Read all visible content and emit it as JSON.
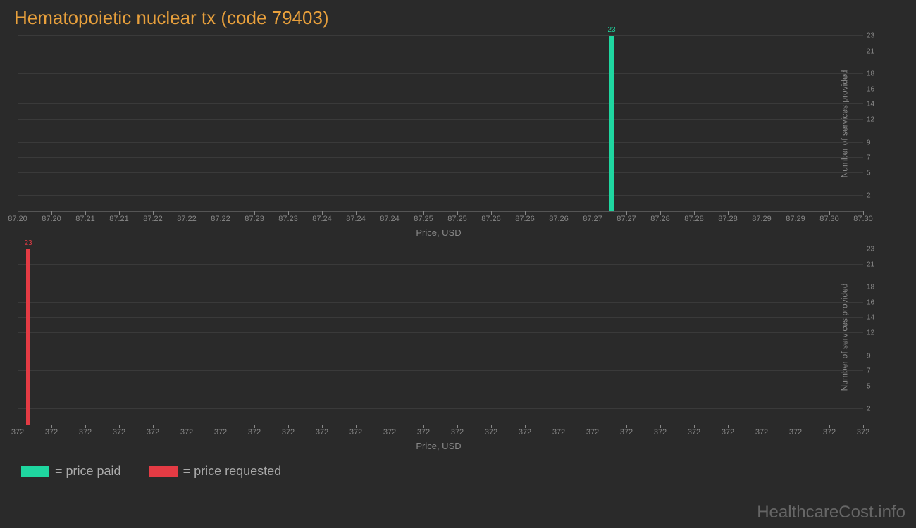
{
  "title": "Hematopoietic nuclear tx (code 79403)",
  "background_color": "#2a2a2a",
  "grid_color": "#3a3a3a",
  "axis_color": "#555555",
  "text_muted": "#888888",
  "title_color": "#e8a03c",
  "chart1": {
    "type": "bar",
    "bar_value": 23,
    "bar_label": "23",
    "bar_color": "#1fd6a0",
    "bar_position_pct": 70,
    "x_ticks": [
      "87.20",
      "87.20",
      "87.21",
      "87.21",
      "87.22",
      "87.22",
      "87.22",
      "87.23",
      "87.23",
      "87.24",
      "87.24",
      "87.24",
      "87.25",
      "87.25",
      "87.26",
      "87.26",
      "87.26",
      "87.27",
      "87.27",
      "87.28",
      "87.28",
      "87.28",
      "87.29",
      "87.29",
      "87.30",
      "87.30"
    ],
    "x_label": "Price, USD",
    "y_ticks": [
      2,
      5,
      7,
      9,
      12,
      14,
      16,
      18,
      21,
      23
    ],
    "y_max": 23,
    "y_label": "Number of services provided"
  },
  "chart2": {
    "type": "bar",
    "bar_value": 23,
    "bar_label": "23",
    "bar_color": "#e43b44",
    "bar_position_pct": 1,
    "x_ticks": [
      "372",
      "372",
      "372",
      "372",
      "372",
      "372",
      "372",
      "372",
      "372",
      "372",
      "372",
      "372",
      "372",
      "372",
      "372",
      "372",
      "372",
      "372",
      "372",
      "372",
      "372",
      "372",
      "372",
      "372",
      "372",
      "372"
    ],
    "x_label": "Price, USD",
    "y_ticks": [
      2,
      5,
      7,
      9,
      12,
      14,
      16,
      18,
      21,
      23
    ],
    "y_max": 23,
    "y_label": "Number of services provided"
  },
  "legend": [
    {
      "color": "#1fd6a0",
      "label": "= price paid"
    },
    {
      "color": "#e43b44",
      "label": "= price requested"
    }
  ],
  "watermark": "HealthcareCost.info"
}
